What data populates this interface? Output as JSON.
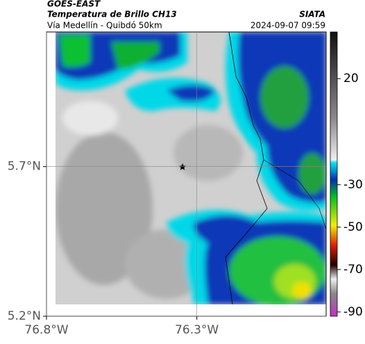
{
  "header": {
    "platform": "GOES-EAST",
    "title": "Temperatura de Brillo CH13",
    "subtitle": "Vía Medellín - Quibdó 50km",
    "source": "SIATA",
    "timestamp": "2024-09-07 09:59"
  },
  "map": {
    "xlim": [
      -76.8,
      -75.87
    ],
    "ylim": [
      5.2,
      6.15
    ],
    "xticks": [
      {
        "value": -76.8,
        "label": "76.8°W"
      },
      {
        "value": -76.3,
        "label": "76.3°W"
      }
    ],
    "yticks": [
      {
        "value": 5.2,
        "label": "5.2°N"
      },
      {
        "value": 5.7,
        "label": "5.7°N"
      }
    ],
    "grid": true
  },
  "colorbar": {
    "lim": [
      -92,
      42
    ],
    "ticks": [
      20,
      -30,
      -50,
      -70,
      -90
    ]
  }
}
